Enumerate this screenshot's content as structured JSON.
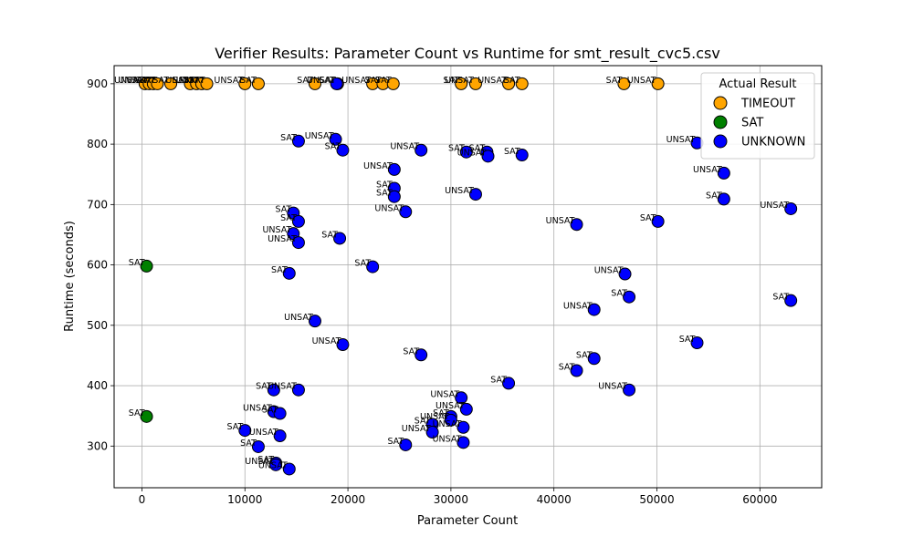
{
  "chart_data": {
    "type": "scatter",
    "title": "Verifier Results: Parameter Count vs Runtime for smt_result_cvc5.csv",
    "xlabel": "Parameter Count",
    "ylabel": "Runtime (seconds)",
    "xlim": [
      -2700,
      66000
    ],
    "ylim": [
      231,
      930
    ],
    "xticks": [
      0,
      10000,
      20000,
      30000,
      40000,
      50000,
      60000
    ],
    "yticks": [
      300,
      400,
      500,
      600,
      700,
      800,
      900
    ],
    "grid": true,
    "legend": {
      "title": "Actual Result",
      "placement": "top-right"
    },
    "series": [
      {
        "name": "TIMEOUT",
        "color": "#ffa500",
        "points": [
          {
            "x": 300,
            "y": 900,
            "label": "UNSAT"
          },
          {
            "x": 700,
            "y": 900,
            "label": "UNSAT"
          },
          {
            "x": 1100,
            "y": 900,
            "label": "SAT"
          },
          {
            "x": 1500,
            "y": 900,
            "label": "UNSAT"
          },
          {
            "x": 2800,
            "y": 900,
            "label": "SAT"
          },
          {
            "x": 4700,
            "y": 900,
            "label": "SAT"
          },
          {
            "x": 5300,
            "y": 900,
            "label": "UNSAT"
          },
          {
            "x": 5800,
            "y": 900,
            "label": "SAT"
          },
          {
            "x": 6300,
            "y": 900,
            "label": "UNSAT"
          },
          {
            "x": 10000,
            "y": 900,
            "label": "UNSAT"
          },
          {
            "x": 11300,
            "y": 900,
            "label": "SAT"
          },
          {
            "x": 16800,
            "y": 900,
            "label": "SAT"
          },
          {
            "x": 19000,
            "y": 900,
            "label": "UNSAT"
          },
          {
            "x": 22400,
            "y": 900,
            "label": "UNSAT"
          },
          {
            "x": 23400,
            "y": 900,
            "label": "SAT"
          },
          {
            "x": 24400,
            "y": 900,
            "label": "SAT"
          },
          {
            "x": 31000,
            "y": 900,
            "label": "SAT"
          },
          {
            "x": 32400,
            "y": 900,
            "label": "UNSAT"
          },
          {
            "x": 35600,
            "y": 900,
            "label": "UNSAT"
          },
          {
            "x": 36900,
            "y": 900,
            "label": "SAT"
          },
          {
            "x": 46800,
            "y": 900,
            "label": "SAT"
          },
          {
            "x": 50100,
            "y": 900,
            "label": "UNSAT"
          }
        ]
      },
      {
        "name": "SAT",
        "color": "#008000",
        "points": [
          {
            "x": 450,
            "y": 598,
            "label": "SAT"
          },
          {
            "x": 450,
            "y": 349,
            "label": "SAT"
          }
        ]
      },
      {
        "name": "UNKNOWN",
        "color": "#0000ff",
        "points": [
          {
            "x": 18900,
            "y": 900,
            "label": "SAT"
          },
          {
            "x": 15200,
            "y": 805,
            "label": "SAT"
          },
          {
            "x": 18800,
            "y": 808,
            "label": "UNSAT"
          },
          {
            "x": 19500,
            "y": 790,
            "label": "SAT"
          },
          {
            "x": 27100,
            "y": 790,
            "label": "UNSAT"
          },
          {
            "x": 31500,
            "y": 787,
            "label": "SAT"
          },
          {
            "x": 33500,
            "y": 787,
            "label": "SAT"
          },
          {
            "x": 33600,
            "y": 780,
            "label": "UNSAT"
          },
          {
            "x": 36900,
            "y": 782,
            "label": "SAT"
          },
          {
            "x": 24500,
            "y": 758,
            "label": "UNSAT"
          },
          {
            "x": 24500,
            "y": 727,
            "label": "SAT"
          },
          {
            "x": 24500,
            "y": 713,
            "label": "SAT"
          },
          {
            "x": 32400,
            "y": 717,
            "label": "UNSAT"
          },
          {
            "x": 25600,
            "y": 688,
            "label": "UNSAT"
          },
          {
            "x": 14700,
            "y": 686,
            "label": "SAT"
          },
          {
            "x": 15200,
            "y": 672,
            "label": "SAT"
          },
          {
            "x": 14700,
            "y": 652,
            "label": "UNSAT"
          },
          {
            "x": 15200,
            "y": 637,
            "label": "UNSAT"
          },
          {
            "x": 19200,
            "y": 644,
            "label": "SAT"
          },
          {
            "x": 22400,
            "y": 597,
            "label": "SAT"
          },
          {
            "x": 14300,
            "y": 586,
            "label": "SAT"
          },
          {
            "x": 42200,
            "y": 667,
            "label": "UNSAT"
          },
          {
            "x": 50100,
            "y": 672,
            "label": "SAT"
          },
          {
            "x": 53900,
            "y": 802,
            "label": "UNSAT"
          },
          {
            "x": 56500,
            "y": 752,
            "label": "UNSAT"
          },
          {
            "x": 56500,
            "y": 709,
            "label": "SAT"
          },
          {
            "x": 63000,
            "y": 693,
            "label": "UNSAT"
          },
          {
            "x": 46900,
            "y": 585,
            "label": "UNSAT"
          },
          {
            "x": 47300,
            "y": 547,
            "label": "SAT"
          },
          {
            "x": 63000,
            "y": 541,
            "label": "SAT"
          },
          {
            "x": 43900,
            "y": 526,
            "label": "UNSAT"
          },
          {
            "x": 16800,
            "y": 507,
            "label": "UNSAT"
          },
          {
            "x": 19500,
            "y": 468,
            "label": "UNSAT"
          },
          {
            "x": 27100,
            "y": 451,
            "label": "SAT"
          },
          {
            "x": 53900,
            "y": 471,
            "label": "SAT"
          },
          {
            "x": 43900,
            "y": 445,
            "label": "SAT"
          },
          {
            "x": 42200,
            "y": 425,
            "label": "SAT"
          },
          {
            "x": 35600,
            "y": 404,
            "label": "SAT"
          },
          {
            "x": 47300,
            "y": 393,
            "label": "UNSAT"
          },
          {
            "x": 12800,
            "y": 393,
            "label": "SAT"
          },
          {
            "x": 15200,
            "y": 393,
            "label": "UNSAT"
          },
          {
            "x": 31000,
            "y": 380,
            "label": "UNSAT"
          },
          {
            "x": 31500,
            "y": 361,
            "label": "UNSAT"
          },
          {
            "x": 12800,
            "y": 357,
            "label": "UNSAT"
          },
          {
            "x": 13400,
            "y": 354,
            "label": "SAT"
          },
          {
            "x": 30000,
            "y": 349,
            "label": "SAT"
          },
          {
            "x": 30000,
            "y": 343,
            "label": "UNSAT"
          },
          {
            "x": 28200,
            "y": 336,
            "label": "SAT"
          },
          {
            "x": 31200,
            "y": 331,
            "label": "UNSAT"
          },
          {
            "x": 28200,
            "y": 323,
            "label": "UNSAT"
          },
          {
            "x": 10000,
            "y": 326,
            "label": "SAT"
          },
          {
            "x": 13400,
            "y": 317,
            "label": "UNSAT"
          },
          {
            "x": 31200,
            "y": 306,
            "label": "UNSAT"
          },
          {
            "x": 25600,
            "y": 302,
            "label": "SAT"
          },
          {
            "x": 11300,
            "y": 299,
            "label": "SAT"
          },
          {
            "x": 13000,
            "y": 272,
            "label": "SAT"
          },
          {
            "x": 13000,
            "y": 269,
            "label": "UNSAT"
          },
          {
            "x": 14300,
            "y": 262,
            "label": "UNSAT"
          }
        ]
      }
    ]
  }
}
